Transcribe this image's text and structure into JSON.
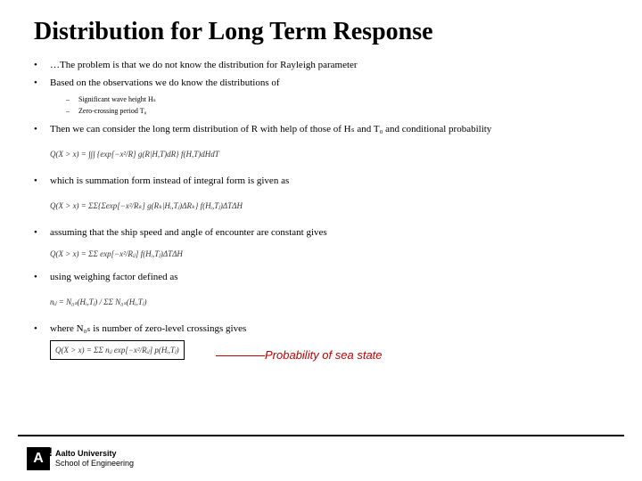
{
  "title": "Distribution for Long Term Response",
  "bullets": {
    "b1": "…The problem is that we do not know the distribution for Rayleigh parameter",
    "b2": "Based on the observations we do know the distributions of",
    "b2_sub1": "Significant wave height Hₛ",
    "b2_sub2": "Zero-crossing period T₀",
    "b3": "Then we can consider the long term distribution of R with help of those of Hₛ and T₀ and conditional probability",
    "b4": "which is summation form instead of integral form is given as",
    "b5": "assuming that the ship speed and angle of encounter are constant gives",
    "b6": "using weighing factor defined as",
    "b7": "where N₀ₛ is number of zero-level crossings gives"
  },
  "formulas": {
    "f1": "Q(X > x) = ∫∫∫ {exp[−x²/R] g(R|H,T)dR} f(H,T)dHdT",
    "f2": "Q(X > x) = ΣΣ{Σexp[−x²/Rₖ] g(Rₖ|Hᵢ,Tⱼ)ΔRₖ} f(Hᵢ,Tⱼ)ΔTΔH",
    "f3": "Q(X > x) = ΣΣ exp[−x²/Rᵢⱼ] f(Hᵢ,Tⱼ)ΔTΔH",
    "f4": "nᵢⱼ = N₀ₛ(Hᵢ,Tⱼ) / ΣΣ N₀ₛ(Hᵢ,Tⱼ)",
    "f5": "Q(X > x) = ΣΣ nᵢⱼ exp[−x²/Rᵢⱼ] p(Hᵢ,Tⱼ)"
  },
  "annotation": "Probability of sea state",
  "logo": {
    "mark": "A",
    "line1": "Aalto University",
    "line2": "School of Engineering"
  },
  "colors": {
    "title_black": "#000000",
    "annotation_red": "#c00000",
    "background": "#ffffff"
  }
}
